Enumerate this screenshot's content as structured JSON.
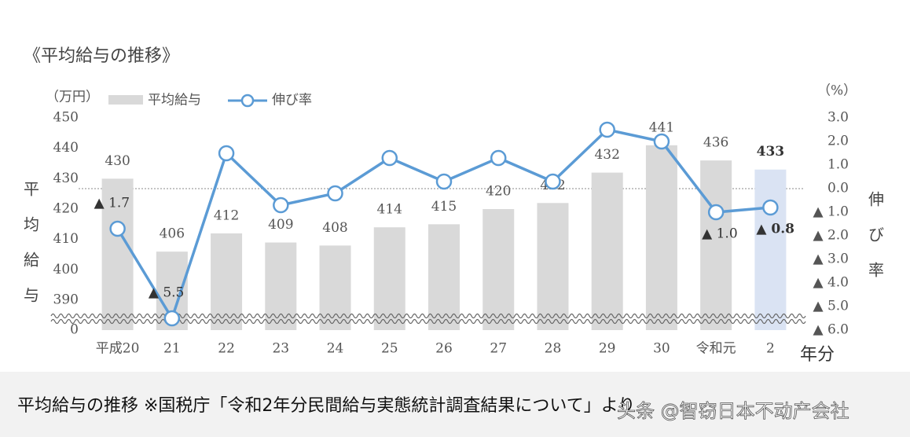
{
  "chart_data": {
    "type": "bar-line",
    "title": "《平均給与の推移》",
    "y_unit": "（万円）",
    "y2_unit": "（%）",
    "ylabel": "平均給与",
    "y2label": "伸び率",
    "xunit": "年分",
    "categories": [
      "平成20",
      "21",
      "22",
      "23",
      "24",
      "25",
      "26",
      "27",
      "28",
      "29",
      "30",
      "令和元",
      "2"
    ],
    "series": [
      {
        "name": "平均給与",
        "type": "bar",
        "color": "#d9d9d9",
        "colors": [
          "#d9d9d9",
          "#d9d9d9",
          "#d9d9d9",
          "#d9d9d9",
          "#d9d9d9",
          "#d9d9d9",
          "#d9d9d9",
          "#d9d9d9",
          "#d9d9d9",
          "#d9d9d9",
          "#d9d9d9",
          "#d9d9d9",
          "#dae3f3"
        ],
        "values": [
          430,
          406,
          412,
          409,
          408,
          414,
          415,
          420,
          422,
          432,
          441,
          436,
          433
        ]
      },
      {
        "name": "伸び率",
        "type": "line",
        "axis": "y2",
        "color": "#5b9bd5",
        "values": [
          -1.7,
          -5.5,
          1.5,
          -0.7,
          -0.2,
          1.3,
          0.3,
          1.3,
          0.3,
          2.5,
          2.0,
          -1.0,
          -0.8
        ],
        "value_labels": [
          "▲ 1.7",
          "▲ 5.5",
          null,
          null,
          null,
          null,
          null,
          null,
          null,
          null,
          null,
          "▲ 1.0",
          "▲ 0.8"
        ]
      }
    ],
    "ylim": [
      0,
      450
    ],
    "axis_break": [
      0,
      390
    ],
    "yticks": [
      0,
      390,
      400,
      410,
      420,
      430,
      440,
      450
    ],
    "y2lim": [
      -6,
      3
    ],
    "y2ticks": [
      {
        "value": 3,
        "label": "3.0"
      },
      {
        "value": 2,
        "label": "2.0"
      },
      {
        "value": 1,
        "label": "1.0"
      },
      {
        "value": 0,
        "label": "0.0"
      },
      {
        "value": -1,
        "label": "▲ 1.0"
      },
      {
        "value": -2,
        "label": "▲ 2.0"
      },
      {
        "value": -3,
        "label": "▲ 3.0"
      },
      {
        "value": -4,
        "label": "▲ 4.0"
      },
      {
        "value": -5,
        "label": "▲ 5.0"
      },
      {
        "value": -6,
        "label": "▲ 6.0"
      }
    ],
    "y2_zero_line": true
  },
  "caption": "平均給与の推移 ※国税庁「令和2年分民間給与実態統計調査結果について」より",
  "watermark": "头条 @智窃日本不动产会社"
}
